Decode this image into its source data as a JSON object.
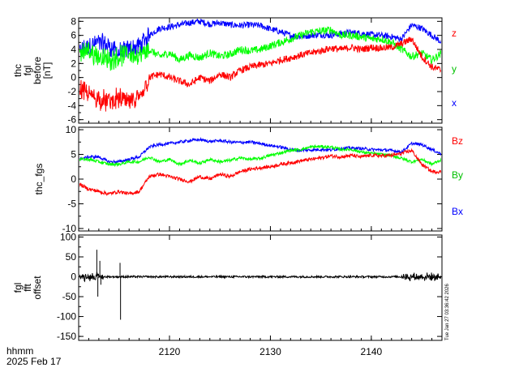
{
  "chart_data": [
    {
      "type": "line",
      "panel": "fgl_before",
      "ylabel_lines": [
        "thc",
        "fgl",
        "before",
        "[nT]"
      ],
      "ylim": [
        -6.5,
        8.5
      ],
      "yticks": [
        -6,
        -4,
        -2,
        0,
        2,
        4,
        6,
        8
      ],
      "xlim": [
        2111,
        2147
      ],
      "series": [
        {
          "name": "x",
          "color": "#0000ff",
          "noise": 0.45,
          "x": [
            2111,
            2112,
            2113,
            2114,
            2115,
            2116,
            2117,
            2118,
            2119,
            2120,
            2121,
            2122,
            2123,
            2124,
            2125,
            2126,
            2127,
            2128,
            2129,
            2130,
            2131,
            2132,
            2133,
            2134,
            2135,
            2136,
            2137,
            2138,
            2139,
            2140,
            2141,
            2142,
            2143,
            2144,
            2145,
            2146,
            2147
          ],
          "values": [
            3.5,
            4.5,
            5,
            4.5,
            3.5,
            4,
            4.5,
            6,
            7,
            7.2,
            7.5,
            7.8,
            8,
            7.6,
            7.8,
            7.5,
            7.4,
            7.5,
            7.4,
            6.9,
            6.5,
            6.0,
            5.8,
            6.0,
            6.1,
            6.0,
            6.3,
            6.4,
            6.3,
            6.1,
            6.0,
            5.8,
            5.5,
            7.5,
            7.0,
            6.0,
            5.0
          ]
        },
        {
          "name": "y",
          "color": "#00ff00",
          "noise": 0.55,
          "x": [
            2111,
            2112,
            2113,
            2114,
            2115,
            2116,
            2117,
            2118,
            2119,
            2120,
            2121,
            2122,
            2123,
            2124,
            2125,
            2126,
            2127,
            2128,
            2129,
            2130,
            2131,
            2132,
            2133,
            2134,
            2135,
            2136,
            2137,
            2138,
            2139,
            2140,
            2141,
            2142,
            2143,
            2144,
            2145,
            2146,
            2147
          ],
          "values": [
            3.5,
            3.8,
            3.0,
            2.5,
            3.0,
            3.5,
            3.0,
            4.0,
            3.0,
            3.5,
            2.5,
            3.2,
            2.8,
            3.5,
            3.0,
            3.3,
            4.0,
            3.8,
            4.0,
            4.5,
            5.0,
            5.5,
            6.0,
            6.5,
            6.6,
            6.8,
            6.0,
            6.0,
            5.8,
            5.5,
            5.5,
            5.0,
            4.0,
            3.0,
            3.5,
            2.5,
            3.5
          ]
        },
        {
          "name": "z",
          "color": "#ff0000",
          "noise": 0.5,
          "x": [
            2111,
            2112,
            2113,
            2114,
            2115,
            2116,
            2117,
            2118,
            2119,
            2120,
            2121,
            2122,
            2123,
            2124,
            2125,
            2126,
            2127,
            2128,
            2129,
            2130,
            2131,
            2132,
            2133,
            2134,
            2135,
            2136,
            2137,
            2138,
            2139,
            2140,
            2141,
            2142,
            2143,
            2144,
            2145,
            2146,
            2147
          ],
          "values": [
            -1.5,
            -2.5,
            -3.0,
            -3.5,
            -3.0,
            -3.5,
            -3.0,
            0.0,
            0.5,
            0.0,
            -0.5,
            -1.0,
            0.0,
            -0.5,
            0.5,
            0.0,
            1.0,
            1.5,
            1.8,
            2.0,
            2.5,
            2.8,
            3.2,
            3.5,
            3.8,
            4.2,
            4.0,
            4.3,
            4.0,
            4.3,
            4.2,
            4.3,
            4.8,
            5.5,
            3.0,
            1.5,
            1.0
          ]
        }
      ],
      "legend": [
        {
          "label": "z",
          "color": "#ff0000"
        },
        {
          "label": "y",
          "color": "#00c000"
        },
        {
          "label": "x",
          "color": "#0000ff"
        }
      ]
    },
    {
      "type": "line",
      "panel": "fgs",
      "ylabel_lines": [
        "thc_fgs"
      ],
      "ylim": [
        -10.5,
        10.5
      ],
      "yticks": [
        -10,
        -5,
        0,
        5,
        10
      ],
      "xlim": [
        2111,
        2147
      ],
      "series": [
        {
          "name": "Bx",
          "color": "#0000ff",
          "noise": 0.3,
          "x": [
            2111,
            2112,
            2113,
            2114,
            2115,
            2116,
            2117,
            2118,
            2119,
            2120,
            2121,
            2122,
            2123,
            2124,
            2125,
            2126,
            2127,
            2128,
            2129,
            2130,
            2131,
            2132,
            2133,
            2134,
            2135,
            2136,
            2137,
            2138,
            2139,
            2140,
            2141,
            2142,
            2143,
            2144,
            2145,
            2146,
            2147
          ],
          "values": [
            4.0,
            4.5,
            4.5,
            3.5,
            3.5,
            4.0,
            4.5,
            6.5,
            7.0,
            7.2,
            7.5,
            7.8,
            8.0,
            7.6,
            7.8,
            7.5,
            7.4,
            7.5,
            7.2,
            6.8,
            6.5,
            6.0,
            5.8,
            5.9,
            6.0,
            5.9,
            6.2,
            6.3,
            6.2,
            6.0,
            5.9,
            5.8,
            5.5,
            7.2,
            7.0,
            6.0,
            5.0
          ]
        },
        {
          "name": "By",
          "color": "#00ff00",
          "noise": 0.3,
          "x": [
            2111,
            2112,
            2113,
            2114,
            2115,
            2116,
            2117,
            2118,
            2119,
            2120,
            2121,
            2122,
            2123,
            2124,
            2125,
            2126,
            2127,
            2128,
            2129,
            2130,
            2131,
            2132,
            2133,
            2134,
            2135,
            2136,
            2137,
            2138,
            2139,
            2140,
            2141,
            2142,
            2143,
            2144,
            2145,
            2146,
            2147
          ],
          "values": [
            4.0,
            4.0,
            3.5,
            3.0,
            3.0,
            3.5,
            3.5,
            4.5,
            3.5,
            4.0,
            3.0,
            3.8,
            3.2,
            4.0,
            3.5,
            3.8,
            4.3,
            4.0,
            4.2,
            4.8,
            5.3,
            5.8,
            6.0,
            6.5,
            6.6,
            6.5,
            6.0,
            6.0,
            5.5,
            5.2,
            5.0,
            4.8,
            4.2,
            3.5,
            4.0,
            3.0,
            4.0
          ]
        },
        {
          "name": "Bz",
          "color": "#ff0000",
          "noise": 0.35,
          "x": [
            2111,
            2112,
            2113,
            2114,
            2115,
            2116,
            2117,
            2118,
            2119,
            2120,
            2121,
            2122,
            2123,
            2124,
            2125,
            2126,
            2127,
            2128,
            2129,
            2130,
            2131,
            2132,
            2133,
            2134,
            2135,
            2136,
            2137,
            2138,
            2139,
            2140,
            2141,
            2142,
            2143,
            2144,
            2145,
            2146,
            2147
          ],
          "values": [
            -1.0,
            -2.0,
            -2.5,
            -3.0,
            -2.5,
            -3.0,
            -2.5,
            0.5,
            1.0,
            0.5,
            0.0,
            -0.5,
            0.5,
            0.0,
            1.0,
            0.5,
            1.5,
            2.0,
            2.3,
            2.5,
            3.0,
            3.3,
            3.7,
            4.0,
            4.3,
            4.7,
            4.5,
            4.8,
            4.5,
            4.8,
            4.7,
            4.8,
            5.2,
            5.8,
            3.0,
            1.5,
            1.5
          ]
        }
      ],
      "legend": [
        {
          "label": "Bz",
          "color": "#ff0000"
        },
        {
          "label": "By",
          "color": "#00c000"
        },
        {
          "label": "Bx",
          "color": "#0000ff"
        }
      ]
    },
    {
      "type": "line",
      "panel": "fgl_fft_offset",
      "ylabel_lines": [
        "fgl",
        "fft",
        "offset"
      ],
      "ylim": [
        -160,
        105
      ],
      "yticks": [
        -150,
        -100,
        -50,
        0,
        50,
        100
      ],
      "xlim": [
        2111,
        2147
      ],
      "series": [
        {
          "name": "offset",
          "color": "#000000",
          "noise": 2.5,
          "x": [
            2111,
            2147
          ],
          "values": [
            0,
            0
          ],
          "spikes": [
            [
              2112.8,
              68
            ],
            [
              2112.9,
              -50
            ],
            [
              2113.1,
              40
            ],
            [
              2113.2,
              -20
            ],
            [
              2115.1,
              35
            ],
            [
              2115.15,
              -108
            ]
          ],
          "noisy_ranges": [
            [
              2111,
              2113.5,
              10
            ],
            [
              2143,
              2147,
              10
            ]
          ]
        }
      ]
    }
  ],
  "x_axis": {
    "tick_labels": [
      "2120",
      "2130",
      "2140"
    ],
    "tick_values": [
      2120,
      2130,
      2140
    ],
    "unit_label": "hhmm",
    "date_label": "2025 Feb 17"
  },
  "timestamp": "Tue Jan 27 03:36:42 2026"
}
